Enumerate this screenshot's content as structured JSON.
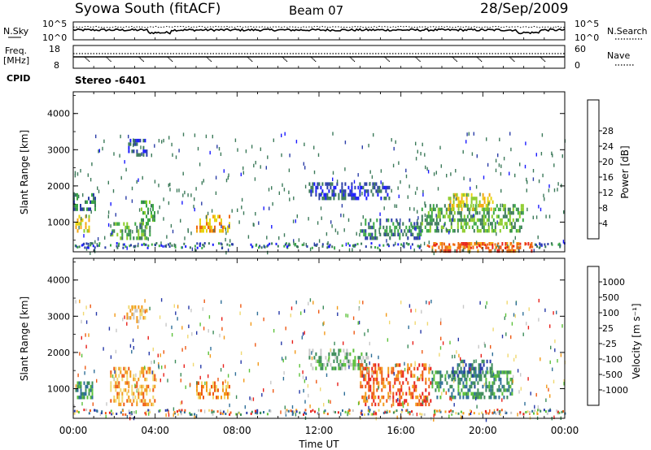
{
  "header": {
    "station": "Syowa South (fitACF)",
    "beam": "Beam 07",
    "date": "28/Sep/2009"
  },
  "nsky_panel": {
    "left_label": "N.Sky",
    "left_ticks": [
      "10^5",
      "10^0"
    ],
    "right_label": "N.Search",
    "right_ticks": [
      "10^5",
      "10^0"
    ],
    "nsky_level": 0.55,
    "nsearch_level": 0.72
  },
  "freq_panel": {
    "left_label_1": "Freq.",
    "left_label_2": "[MHz]",
    "left_ticks": [
      "18",
      "8"
    ],
    "right_label": "Nave",
    "right_ticks": [
      "60",
      "0"
    ],
    "cpid_label": "CPID",
    "cpid_value": "Stereo -6401"
  },
  "chart_data": [
    {
      "type": "heatmap",
      "name": "power",
      "xlabel": "",
      "ylabel": "Slant Range [km]",
      "x_ticks": [
        "00:00",
        "04:00",
        "08:00",
        "12:00",
        "16:00",
        "20:00",
        "00:00"
      ],
      "x_hours": [
        0,
        4,
        8,
        12,
        16,
        20,
        24
      ],
      "y_ticks": [
        "1000",
        "2000",
        "3000",
        "4000"
      ],
      "y_values": [
        1000,
        2000,
        3000,
        4000
      ],
      "ylim": [
        180,
        4600
      ],
      "colorbar_label": "Power [dB]",
      "colorbar_ticks": [
        "4",
        "8",
        "12",
        "16",
        "20",
        "24",
        "28"
      ],
      "colorbar_colors": [
        "#1a1aff",
        "#2b3ea8",
        "#3c7a5a",
        "#3aa845",
        "#8ccc2a",
        "#e7d411",
        "#f5a70f",
        "#ee6a10",
        "#e8261a"
      ],
      "clusters": [
        {
          "t0": 0.1,
          "t1": 0.9,
          "r0": 700,
          "r1": 1200,
          "level": 5
        },
        {
          "t0": 0.0,
          "t1": 1.2,
          "r0": 1300,
          "r1": 1800,
          "level": 2
        },
        {
          "t0": 1.8,
          "t1": 3.8,
          "r0": 500,
          "r1": 1000,
          "level": 3
        },
        {
          "t0": 3.3,
          "t1": 4.0,
          "r0": 900,
          "r1": 1600,
          "level": 3
        },
        {
          "t0": 2.6,
          "t1": 3.6,
          "r0": 2800,
          "r1": 3300,
          "level": 1
        },
        {
          "t0": 6.0,
          "t1": 7.7,
          "r0": 700,
          "r1": 1200,
          "level": 6
        },
        {
          "t0": 11.5,
          "t1": 15.5,
          "r0": 1600,
          "r1": 2100,
          "level": 1
        },
        {
          "t0": 14.0,
          "t1": 17.0,
          "r0": 500,
          "r1": 1100,
          "level": 2
        },
        {
          "t0": 17.0,
          "t1": 22.0,
          "r0": 700,
          "r1": 1500,
          "level": 3
        },
        {
          "t0": 18.3,
          "t1": 20.5,
          "r0": 1300,
          "r1": 1800,
          "level": 5
        },
        {
          "t0": 17.5,
          "t1": 22.5,
          "r0": 200,
          "r1": 450,
          "level": 7
        }
      ]
    },
    {
      "type": "heatmap",
      "name": "velocity",
      "xlabel": "Time UT",
      "ylabel": "Slant Range [km]",
      "x_ticks": [
        "00:00",
        "04:00",
        "08:00",
        "12:00",
        "16:00",
        "20:00",
        "00:00"
      ],
      "x_hours": [
        0,
        4,
        8,
        12,
        16,
        20,
        24
      ],
      "y_ticks": [
        "1000",
        "2000",
        "3000",
        "4000"
      ],
      "y_values": [
        1000,
        2000,
        3000,
        4000
      ],
      "ylim": [
        180,
        4600
      ],
      "colorbar_label": "Velocity [m s⁻¹]",
      "colorbar_ticks": [
        "1000",
        "500",
        "100",
        "25",
        "-25",
        "-100",
        "-500",
        "-1000"
      ],
      "colorbar_colors": [
        "#2639a8",
        "#2f6f98",
        "#3c8c5a",
        "#5cc23a",
        "#c8c8c8",
        "#f0d870",
        "#f29a1a",
        "#ee5a14",
        "#e8201a"
      ],
      "clusters": [
        {
          "t0": 0.1,
          "t1": 1.0,
          "r0": 700,
          "r1": 1200,
          "level": 2
        },
        {
          "t0": 1.8,
          "t1": 4.0,
          "r0": 500,
          "r1": 1600,
          "level": 6
        },
        {
          "t0": 2.6,
          "t1": 3.6,
          "r0": 2800,
          "r1": 3300,
          "level": 5
        },
        {
          "t0": 6.0,
          "t1": 7.7,
          "r0": 700,
          "r1": 1200,
          "level": 6
        },
        {
          "t0": 11.5,
          "t1": 14.5,
          "r0": 1500,
          "r1": 2100,
          "level": 3
        },
        {
          "t0": 14.0,
          "t1": 17.5,
          "r0": 500,
          "r1": 1700,
          "level": 7
        },
        {
          "t0": 17.5,
          "t1": 21.5,
          "r0": 700,
          "r1": 1500,
          "level": 2
        },
        {
          "t0": 18.5,
          "t1": 20.5,
          "r0": 1300,
          "r1": 1800,
          "level": 1
        }
      ]
    }
  ]
}
